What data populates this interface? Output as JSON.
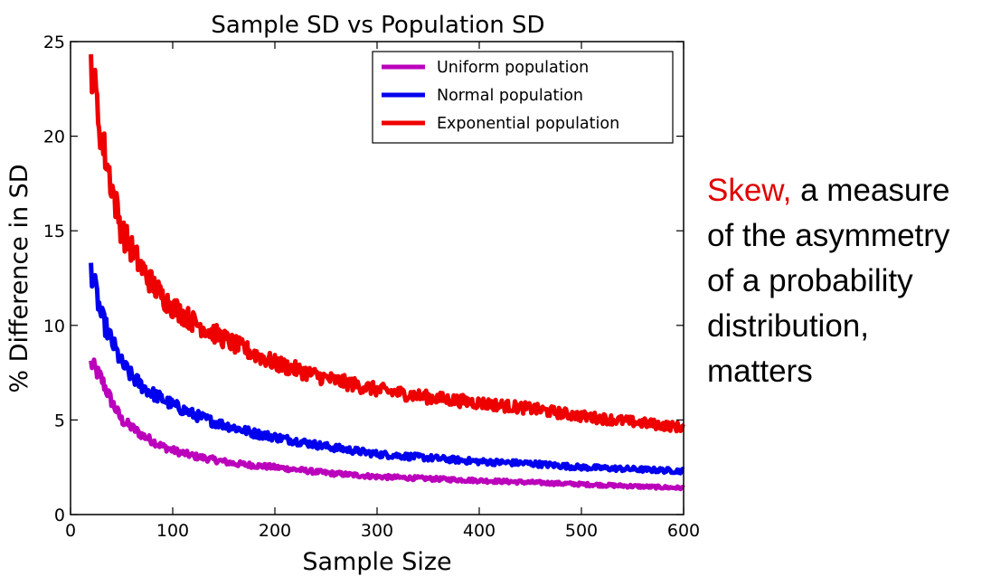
{
  "caption": {
    "highlight": "Skew,",
    "rest_line1": " a measure",
    "lines": [
      "of the asymmetry",
      "of a probability",
      "distribution,",
      "matters"
    ],
    "highlight_color": "#e00000"
  },
  "chart_data": {
    "type": "line",
    "title": "Sample SD vs Population SD",
    "xlabel": "Sample Size",
    "ylabel": "% Difference in SD",
    "xlim": [
      0,
      600
    ],
    "ylim": [
      0,
      25
    ],
    "xticks": [
      0,
      100,
      200,
      300,
      400,
      500,
      600
    ],
    "yticks": [
      0,
      5,
      10,
      15,
      20,
      25
    ],
    "grid": false,
    "legend_position": "top-right",
    "series": [
      {
        "name": "Uniform population",
        "color": "#bb00bb",
        "x": [
          20,
          30,
          40,
          50,
          60,
          70,
          80,
          90,
          100,
          120,
          140,
          160,
          180,
          200,
          250,
          300,
          350,
          400,
          450,
          500,
          550,
          600
        ],
        "values": [
          8.0,
          7.2,
          6.0,
          5.0,
          4.6,
          4.2,
          3.9,
          3.6,
          3.4,
          3.1,
          2.9,
          2.7,
          2.6,
          2.5,
          2.2,
          2.0,
          1.9,
          1.8,
          1.7,
          1.6,
          1.5,
          1.4
        ]
      },
      {
        "name": "Normal population",
        "color": "#0000ee",
        "x": [
          20,
          30,
          40,
          50,
          60,
          70,
          80,
          90,
          100,
          120,
          140,
          160,
          180,
          200,
          250,
          300,
          350,
          400,
          450,
          500,
          550,
          600
        ],
        "values": [
          13.0,
          10.5,
          9.2,
          8.0,
          7.3,
          6.8,
          6.4,
          6.1,
          5.8,
          5.3,
          4.9,
          4.6,
          4.3,
          4.1,
          3.6,
          3.2,
          3.0,
          2.8,
          2.7,
          2.5,
          2.4,
          2.3
        ]
      },
      {
        "name": "Exponential population",
        "color": "#ee0000",
        "x": [
          20,
          30,
          40,
          50,
          60,
          70,
          80,
          90,
          100,
          120,
          140,
          160,
          180,
          200,
          250,
          300,
          350,
          400,
          450,
          500,
          550,
          600
        ],
        "values": [
          24.0,
          20.0,
          17.5,
          15.0,
          14.0,
          13.0,
          12.2,
          11.5,
          11.0,
          10.2,
          9.6,
          9.0,
          8.5,
          8.0,
          7.2,
          6.6,
          6.2,
          5.9,
          5.6,
          5.2,
          4.9,
          4.6
        ]
      }
    ]
  }
}
